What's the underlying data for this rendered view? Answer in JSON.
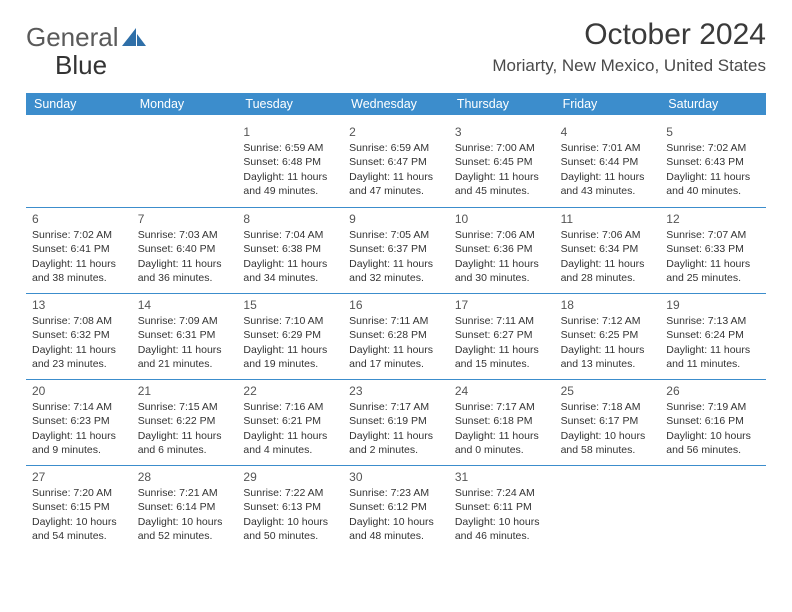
{
  "logo": {
    "text1": "General",
    "text2": "Blue"
  },
  "title": "October 2024",
  "location": "Moriarty, New Mexico, United States",
  "colors": {
    "header_bg": "#3c8dcc",
    "header_fg": "#ffffff",
    "cell_border": "#3c8dcc",
    "text": "#333333",
    "logo_gray": "#5a5a5a",
    "logo_blue": "#2f6fa8"
  },
  "days": [
    "Sunday",
    "Monday",
    "Tuesday",
    "Wednesday",
    "Thursday",
    "Friday",
    "Saturday"
  ],
  "cells": [
    {
      "n": "",
      "sr": "",
      "ss": "",
      "dl": ""
    },
    {
      "n": "",
      "sr": "",
      "ss": "",
      "dl": ""
    },
    {
      "n": "1",
      "sr": "Sunrise: 6:59 AM",
      "ss": "Sunset: 6:48 PM",
      "dl": "Daylight: 11 hours and 49 minutes."
    },
    {
      "n": "2",
      "sr": "Sunrise: 6:59 AM",
      "ss": "Sunset: 6:47 PM",
      "dl": "Daylight: 11 hours and 47 minutes."
    },
    {
      "n": "3",
      "sr": "Sunrise: 7:00 AM",
      "ss": "Sunset: 6:45 PM",
      "dl": "Daylight: 11 hours and 45 minutes."
    },
    {
      "n": "4",
      "sr": "Sunrise: 7:01 AM",
      "ss": "Sunset: 6:44 PM",
      "dl": "Daylight: 11 hours and 43 minutes."
    },
    {
      "n": "5",
      "sr": "Sunrise: 7:02 AM",
      "ss": "Sunset: 6:43 PM",
      "dl": "Daylight: 11 hours and 40 minutes."
    },
    {
      "n": "6",
      "sr": "Sunrise: 7:02 AM",
      "ss": "Sunset: 6:41 PM",
      "dl": "Daylight: 11 hours and 38 minutes."
    },
    {
      "n": "7",
      "sr": "Sunrise: 7:03 AM",
      "ss": "Sunset: 6:40 PM",
      "dl": "Daylight: 11 hours and 36 minutes."
    },
    {
      "n": "8",
      "sr": "Sunrise: 7:04 AM",
      "ss": "Sunset: 6:38 PM",
      "dl": "Daylight: 11 hours and 34 minutes."
    },
    {
      "n": "9",
      "sr": "Sunrise: 7:05 AM",
      "ss": "Sunset: 6:37 PM",
      "dl": "Daylight: 11 hours and 32 minutes."
    },
    {
      "n": "10",
      "sr": "Sunrise: 7:06 AM",
      "ss": "Sunset: 6:36 PM",
      "dl": "Daylight: 11 hours and 30 minutes."
    },
    {
      "n": "11",
      "sr": "Sunrise: 7:06 AM",
      "ss": "Sunset: 6:34 PM",
      "dl": "Daylight: 11 hours and 28 minutes."
    },
    {
      "n": "12",
      "sr": "Sunrise: 7:07 AM",
      "ss": "Sunset: 6:33 PM",
      "dl": "Daylight: 11 hours and 25 minutes."
    },
    {
      "n": "13",
      "sr": "Sunrise: 7:08 AM",
      "ss": "Sunset: 6:32 PM",
      "dl": "Daylight: 11 hours and 23 minutes."
    },
    {
      "n": "14",
      "sr": "Sunrise: 7:09 AM",
      "ss": "Sunset: 6:31 PM",
      "dl": "Daylight: 11 hours and 21 minutes."
    },
    {
      "n": "15",
      "sr": "Sunrise: 7:10 AM",
      "ss": "Sunset: 6:29 PM",
      "dl": "Daylight: 11 hours and 19 minutes."
    },
    {
      "n": "16",
      "sr": "Sunrise: 7:11 AM",
      "ss": "Sunset: 6:28 PM",
      "dl": "Daylight: 11 hours and 17 minutes."
    },
    {
      "n": "17",
      "sr": "Sunrise: 7:11 AM",
      "ss": "Sunset: 6:27 PM",
      "dl": "Daylight: 11 hours and 15 minutes."
    },
    {
      "n": "18",
      "sr": "Sunrise: 7:12 AM",
      "ss": "Sunset: 6:25 PM",
      "dl": "Daylight: 11 hours and 13 minutes."
    },
    {
      "n": "19",
      "sr": "Sunrise: 7:13 AM",
      "ss": "Sunset: 6:24 PM",
      "dl": "Daylight: 11 hours and 11 minutes."
    },
    {
      "n": "20",
      "sr": "Sunrise: 7:14 AM",
      "ss": "Sunset: 6:23 PM",
      "dl": "Daylight: 11 hours and 9 minutes."
    },
    {
      "n": "21",
      "sr": "Sunrise: 7:15 AM",
      "ss": "Sunset: 6:22 PM",
      "dl": "Daylight: 11 hours and 6 minutes."
    },
    {
      "n": "22",
      "sr": "Sunrise: 7:16 AM",
      "ss": "Sunset: 6:21 PM",
      "dl": "Daylight: 11 hours and 4 minutes."
    },
    {
      "n": "23",
      "sr": "Sunrise: 7:17 AM",
      "ss": "Sunset: 6:19 PM",
      "dl": "Daylight: 11 hours and 2 minutes."
    },
    {
      "n": "24",
      "sr": "Sunrise: 7:17 AM",
      "ss": "Sunset: 6:18 PM",
      "dl": "Daylight: 11 hours and 0 minutes."
    },
    {
      "n": "25",
      "sr": "Sunrise: 7:18 AM",
      "ss": "Sunset: 6:17 PM",
      "dl": "Daylight: 10 hours and 58 minutes."
    },
    {
      "n": "26",
      "sr": "Sunrise: 7:19 AM",
      "ss": "Sunset: 6:16 PM",
      "dl": "Daylight: 10 hours and 56 minutes."
    },
    {
      "n": "27",
      "sr": "Sunrise: 7:20 AM",
      "ss": "Sunset: 6:15 PM",
      "dl": "Daylight: 10 hours and 54 minutes."
    },
    {
      "n": "28",
      "sr": "Sunrise: 7:21 AM",
      "ss": "Sunset: 6:14 PM",
      "dl": "Daylight: 10 hours and 52 minutes."
    },
    {
      "n": "29",
      "sr": "Sunrise: 7:22 AM",
      "ss": "Sunset: 6:13 PM",
      "dl": "Daylight: 10 hours and 50 minutes."
    },
    {
      "n": "30",
      "sr": "Sunrise: 7:23 AM",
      "ss": "Sunset: 6:12 PM",
      "dl": "Daylight: 10 hours and 48 minutes."
    },
    {
      "n": "31",
      "sr": "Sunrise: 7:24 AM",
      "ss": "Sunset: 6:11 PM",
      "dl": "Daylight: 10 hours and 46 minutes."
    },
    {
      "n": "",
      "sr": "",
      "ss": "",
      "dl": ""
    },
    {
      "n": "",
      "sr": "",
      "ss": "",
      "dl": ""
    }
  ]
}
